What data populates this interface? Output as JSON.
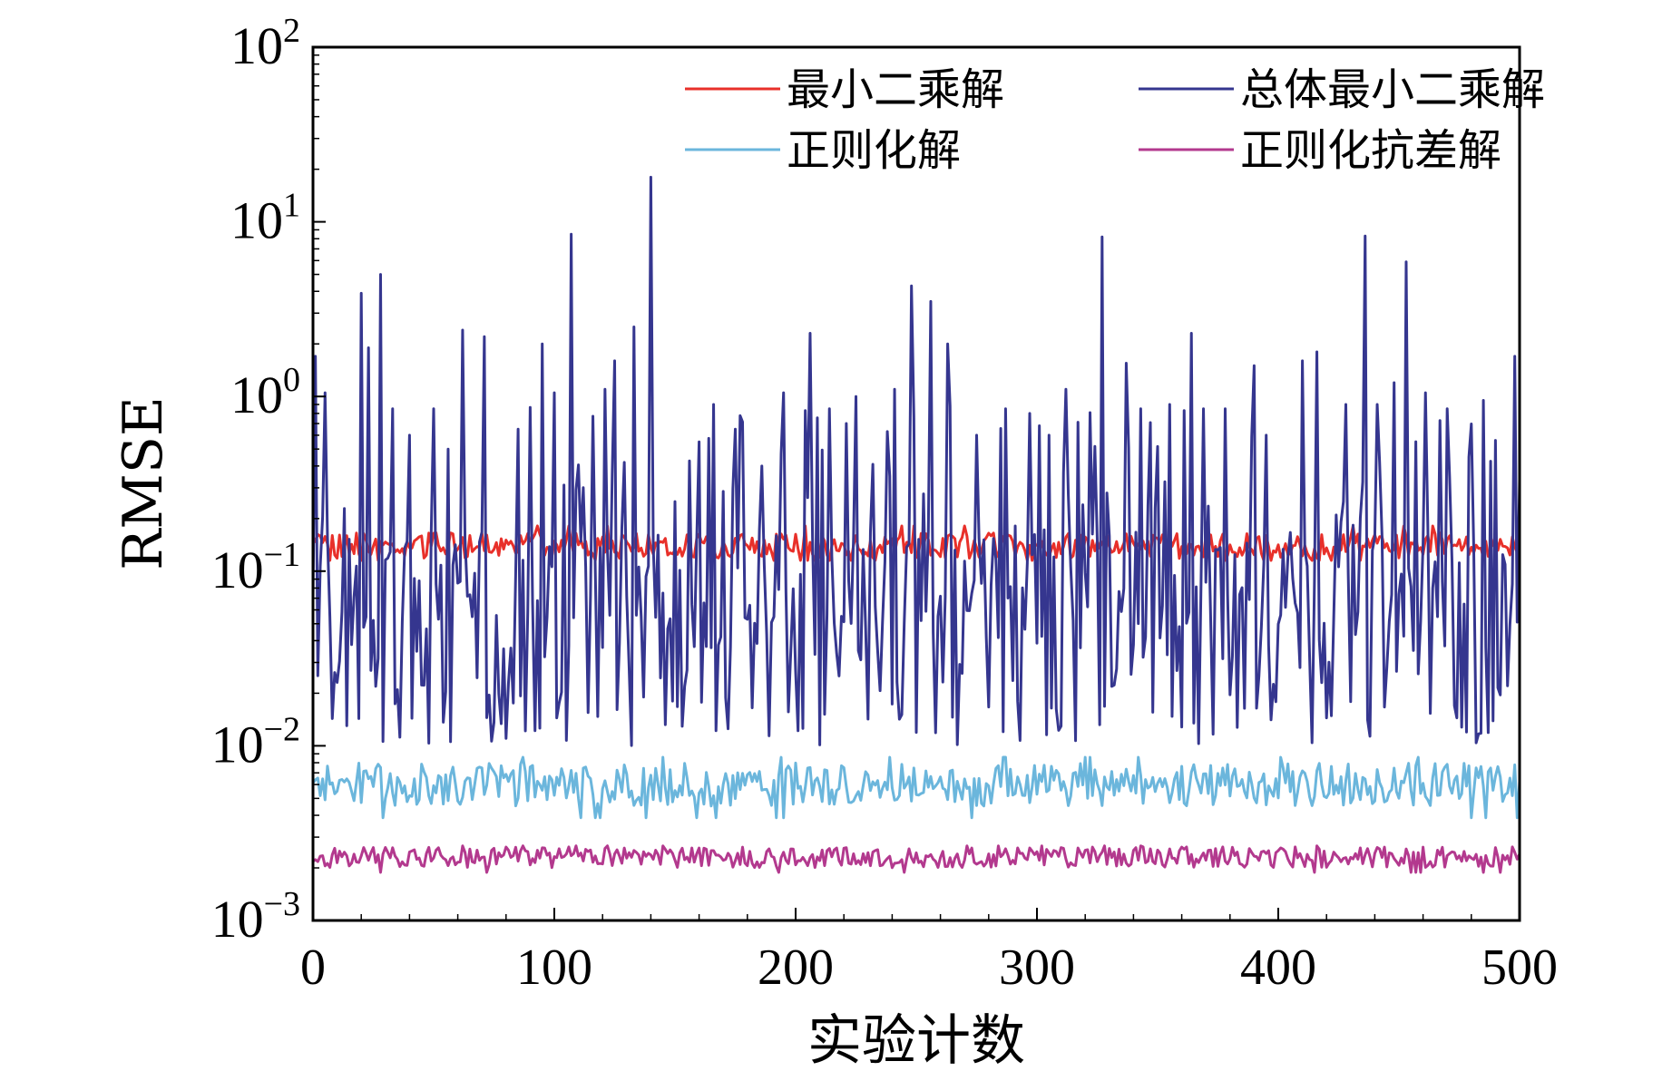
{
  "chart_data": {
    "type": "line",
    "xlabel": "实验计数",
    "ylabel": "RMSE",
    "xlim": [
      0,
      500
    ],
    "ylim": [
      0.001,
      100
    ],
    "yscale": "log",
    "grid": false,
    "legend_position": "top",
    "x_ticks": [
      "0",
      "100",
      "200",
      "300",
      "400",
      "500"
    ],
    "y_ticks": [
      {
        "base": "10",
        "exp": "2",
        "value": 100
      },
      {
        "base": "10",
        "exp": "1",
        "value": 10
      },
      {
        "base": "10",
        "exp": "0",
        "value": 1
      },
      {
        "base": "10",
        "exp": "−1",
        "value": 0.1
      },
      {
        "base": "10",
        "exp": "−2",
        "value": 0.01
      },
      {
        "base": "10",
        "exp": "−3",
        "value": 0.001
      }
    ],
    "series": [
      {
        "name": "最小二乘解",
        "color": "#e8302a",
        "stroke_width": 3,
        "typical": 0.14,
        "range": [
          0.11,
          0.19
        ]
      },
      {
        "name": "总体最小二乘解",
        "color": "#35368f",
        "stroke_width": 3,
        "typical": 0.1,
        "range": [
          0.01,
          18
        ]
      },
      {
        "name": "正则化解",
        "color": "#6bb6dc",
        "stroke_width": 3,
        "typical": 0.006,
        "range": [
          0.0037,
          0.009
        ]
      },
      {
        "name": "正则化抗差解",
        "color": "#b3398e",
        "stroke_width": 3,
        "typical": 0.0023,
        "range": [
          0.0018,
          0.0028
        ]
      }
    ],
    "spikes_series_2": [
      {
        "x": 1,
        "y": 1.7
      },
      {
        "x": 5,
        "y": 1.05
      },
      {
        "x": 20,
        "y": 3.9
      },
      {
        "x": 23,
        "y": 1.9
      },
      {
        "x": 28,
        "y": 5.0
      },
      {
        "x": 33,
        "y": 0.85
      },
      {
        "x": 40,
        "y": 0.6
      },
      {
        "x": 50,
        "y": 0.85
      },
      {
        "x": 62,
        "y": 2.4
      },
      {
        "x": 71,
        "y": 2.2
      },
      {
        "x": 85,
        "y": 0.65
      },
      {
        "x": 95,
        "y": 2.0
      },
      {
        "x": 100,
        "y": 1.05
      },
      {
        "x": 107,
        "y": 8.5
      },
      {
        "x": 121,
        "y": 1.1
      },
      {
        "x": 125,
        "y": 1.6
      },
      {
        "x": 133,
        "y": 2.5
      },
      {
        "x": 140,
        "y": 18.0
      },
      {
        "x": 150,
        "y": 0.25
      },
      {
        "x": 160,
        "y": 0.55
      },
      {
        "x": 166,
        "y": 0.9
      },
      {
        "x": 175,
        "y": 0.65
      },
      {
        "x": 186,
        "y": 0.4
      },
      {
        "x": 195,
        "y": 1.05
      },
      {
        "x": 206,
        "y": 2.3
      },
      {
        "x": 214,
        "y": 0.85
      },
      {
        "x": 221,
        "y": 0.7
      },
      {
        "x": 225,
        "y": 1.0
      },
      {
        "x": 241,
        "y": 1.1
      },
      {
        "x": 248,
        "y": 4.3
      },
      {
        "x": 256,
        "y": 3.5
      },
      {
        "x": 263,
        "y": 2.0
      },
      {
        "x": 275,
        "y": 0.6
      },
      {
        "x": 287,
        "y": 0.85
      },
      {
        "x": 297,
        "y": 0.8
      },
      {
        "x": 305,
        "y": 0.6
      },
      {
        "x": 312,
        "y": 1.1
      },
      {
        "x": 327,
        "y": 8.2
      },
      {
        "x": 337,
        "y": 1.55
      },
      {
        "x": 343,
        "y": 0.85
      },
      {
        "x": 355,
        "y": 0.9
      },
      {
        "x": 364,
        "y": 2.3
      },
      {
        "x": 369,
        "y": 0.85
      },
      {
        "x": 378,
        "y": 0.85
      },
      {
        "x": 390,
        "y": 1.5
      },
      {
        "x": 395,
        "y": 0.6
      },
      {
        "x": 410,
        "y": 1.6
      },
      {
        "x": 416,
        "y": 1.8
      },
      {
        "x": 428,
        "y": 0.9
      },
      {
        "x": 436,
        "y": 8.3
      },
      {
        "x": 441,
        "y": 0.9
      },
      {
        "x": 448,
        "y": 1.2
      },
      {
        "x": 453,
        "y": 5.9
      },
      {
        "x": 461,
        "y": 1.05
      },
      {
        "x": 470,
        "y": 0.85
      },
      {
        "x": 479,
        "y": 0.45
      },
      {
        "x": 485,
        "y": 0.95
      },
      {
        "x": 498,
        "y": 1.7
      }
    ]
  }
}
